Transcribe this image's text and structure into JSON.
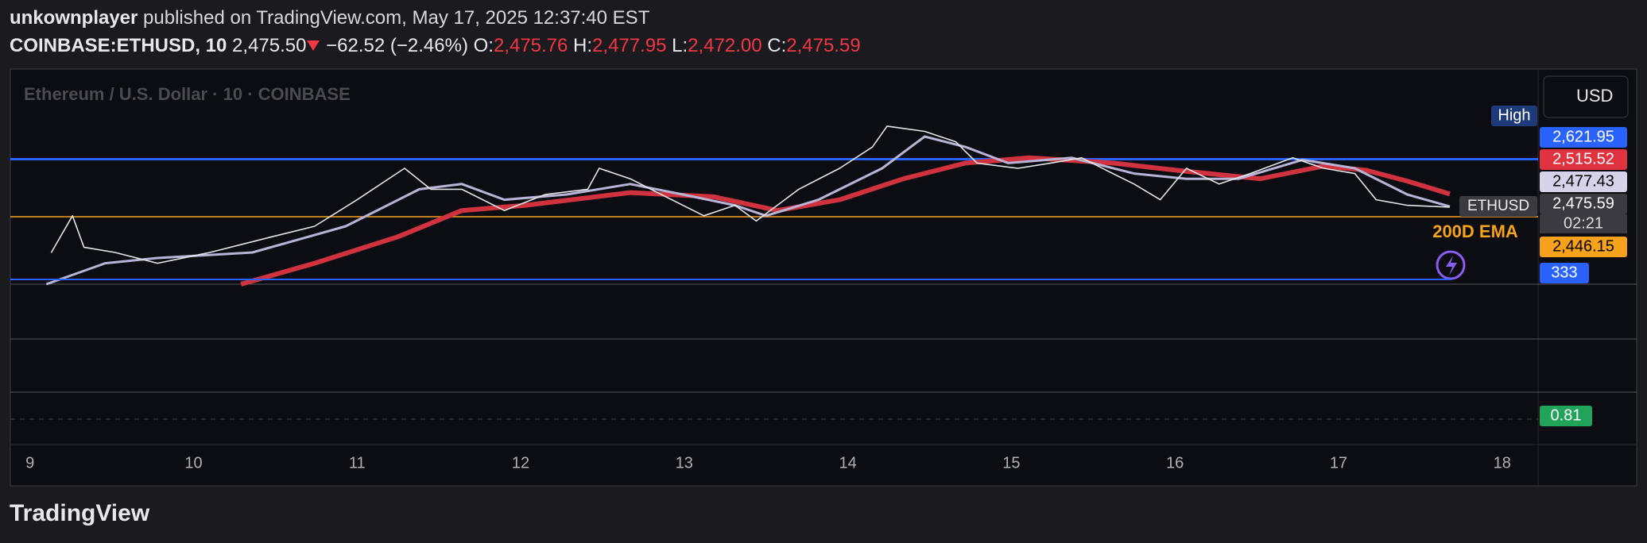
{
  "header": {
    "author": "unkownplayer",
    "published": "published on TradingView.com, May 17, 2025 12:37:40 EST"
  },
  "symbol": {
    "ticker": "COINBASE:ETHUSD, 10",
    "last": "2,475.50",
    "change": "−62.52 (−2.46%)",
    "open_label": "O:",
    "open": "2,475.76",
    "high_label": "H:",
    "high": "2,477.95",
    "low_label": "L:",
    "low": "2,472.00",
    "close_label": "C:",
    "close": "2,475.59"
  },
  "currency": "USD",
  "logo": "TradingView",
  "chart_data": {
    "type": "line",
    "title": "Ethereum / U.S. Dollar · 10 · COINBASE",
    "xlim": [
      8.88,
      18.22
    ],
    "ylim": [
      2240,
      2890
    ],
    "xticks": [
      9,
      10,
      11,
      12,
      13,
      14,
      15,
      16,
      17,
      18
    ],
    "series": [
      {
        "name": "ETHUSD",
        "color": "#e6e6ea",
        "last_label": "2,475.59",
        "x": [
          9.13,
          9.26,
          9.33,
          9.52,
          9.78,
          10.1,
          10.48,
          10.74,
          11.0,
          11.29,
          11.45,
          11.64,
          11.9,
          12.15,
          12.41,
          12.48,
          12.67,
          12.86,
          13.12,
          13.31,
          13.44,
          13.7,
          13.95,
          14.15,
          14.24,
          14.47,
          14.66,
          14.79,
          15.04,
          15.24,
          15.43,
          15.62,
          15.75,
          15.91,
          16.07,
          16.27,
          16.46,
          16.72,
          16.91,
          17.1,
          17.23,
          17.42,
          17.68
        ],
        "values": [
          2336,
          2449,
          2353,
          2337,
          2304,
          2337,
          2385,
          2417,
          2498,
          2594,
          2530,
          2530,
          2465,
          2514,
          2530,
          2594,
          2562,
          2514,
          2449,
          2481,
          2433,
          2530,
          2594,
          2659,
          2723,
          2707,
          2675,
          2610,
          2594,
          2610,
          2626,
          2578,
          2546,
          2498,
          2594,
          2546,
          2578,
          2626,
          2594,
          2578,
          2498,
          2481,
          2475.59
        ]
      },
      {
        "color": "#b9b4d6",
        "last_label": "2,477.43",
        "x": [
          9.1,
          9.46,
          9.78,
          10.36,
          10.93,
          11.38,
          11.64,
          11.9,
          12.28,
          12.67,
          12.99,
          13.31,
          13.5,
          13.82,
          14.21,
          14.47,
          14.72,
          14.98,
          15.37,
          15.75,
          16.07,
          16.39,
          16.78,
          17.1,
          17.42,
          17.68
        ],
        "values": [
          2240,
          2304,
          2320,
          2337,
          2417,
          2530,
          2546,
          2498,
          2514,
          2546,
          2514,
          2481,
          2449,
          2498,
          2594,
          2691,
          2659,
          2610,
          2626,
          2578,
          2562,
          2562,
          2620,
          2594,
          2514,
          2477.43
        ]
      },
      {
        "color": "#d0323f",
        "last_label": "2,515.52",
        "x": [
          10.29,
          10.74,
          11.25,
          11.64,
          12.03,
          12.67,
          13.18,
          13.57,
          13.95,
          14.34,
          14.72,
          15.11,
          15.62,
          16.01,
          16.52,
          16.91,
          17.17,
          17.42,
          17.68
        ],
        "values": [
          2240,
          2304,
          2385,
          2465,
          2481,
          2520,
          2507,
          2465,
          2498,
          2562,
          2610,
          2626,
          2610,
          2588,
          2562,
          2601,
          2588,
          2555,
          2515.52
        ]
      }
    ],
    "hlines": [
      {
        "name": "High",
        "value": 2621.95,
        "value_label": "2,621.95",
        "color": "#2962ff"
      },
      {
        "name": "200D EMA",
        "value": 2446.15,
        "value_label": "2,446.15",
        "color": "#f7a21b"
      }
    ],
    "countdown": "02:21",
    "volume_label": "333",
    "indicator_label": "0.81"
  }
}
